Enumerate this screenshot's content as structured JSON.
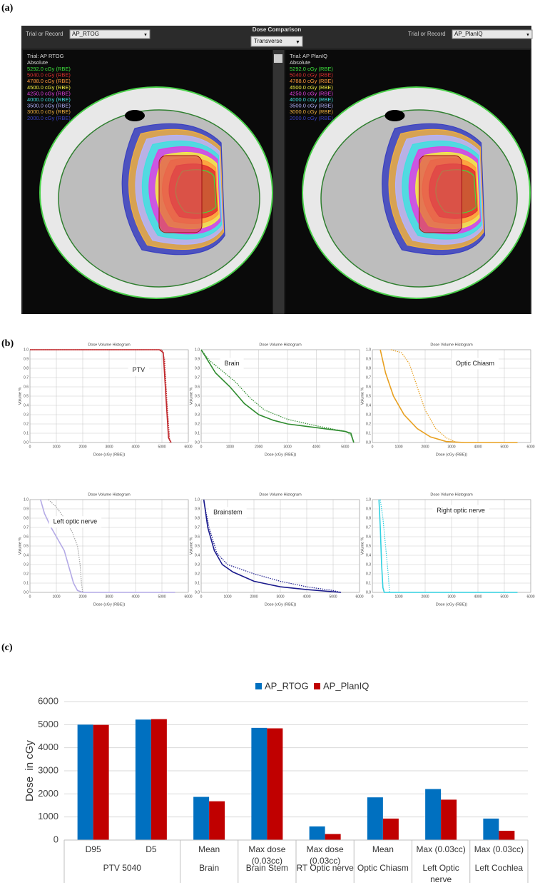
{
  "panels": [
    "(a)",
    "(b)",
    "(c)"
  ],
  "viewer": {
    "center": {
      "title": "Dose Comparison",
      "view": "Transverse"
    },
    "left": {
      "trial_label": "Trial or Record",
      "trial": "AP_RTOG",
      "legend_title": "Trial: AP RTOG",
      "mode": "Absolute",
      "isodoses": [
        {
          "label": "5292.0 cGy (RBE)",
          "color": "#3ce03c"
        },
        {
          "label": "5040.0 cGy (RBE)",
          "color": "#e03030"
        },
        {
          "label": "4788.0 cGy (RBE)",
          "color": "#ff9a3c"
        },
        {
          "label": "4500.0 cGy (RBE)",
          "color": "#f4f040"
        },
        {
          "label": "4250.0 cGy (RBE)",
          "color": "#e040e0"
        },
        {
          "label": "4000.0 cGy (RBE)",
          "color": "#40e0e0"
        },
        {
          "label": "3500.0 cGy (RBE)",
          "color": "#b4b4ff"
        },
        {
          "label": "3000.0 cGy (RBE)",
          "color": "#f0b040"
        },
        {
          "label": "2000.0 cGy (RBE)",
          "color": "#3a40c0"
        }
      ]
    },
    "right": {
      "trial_label": "Trial or Record",
      "trial": "AP_PlanIQ",
      "legend_title": "Trial: AP PlanIQ",
      "mode": "Absolute",
      "isodoses": [
        {
          "label": "5292.0 cGy (RBE)",
          "color": "#3ce03c"
        },
        {
          "label": "5040.0 cGy (RBE)",
          "color": "#e03030"
        },
        {
          "label": "4788.0 cGy (RBE)",
          "color": "#ff9a3c"
        },
        {
          "label": "4500.0 cGy (RBE)",
          "color": "#f4f040"
        },
        {
          "label": "4250.0 cGy (RBE)",
          "color": "#e040e0"
        },
        {
          "label": "4000.0 cGy (RBE)",
          "color": "#40e0e0"
        },
        {
          "label": "3500.0 cGy (RBE)",
          "color": "#b4b4ff"
        },
        {
          "label": "3000.0 cGy (RBE)",
          "color": "#f0b040"
        },
        {
          "label": "2000.0 cGy (RBE)",
          "color": "#3a40c0"
        }
      ]
    }
  },
  "chart_data": [
    {
      "type": "line",
      "title": "Dose Volume Histogram",
      "annotation": "PTV",
      "x_label": "Dose (cGy (RBE))",
      "y_label": "Volume %",
      "grid": true,
      "xlim": [
        0,
        6000
      ],
      "xticks": [
        0,
        1000,
        2000,
        3000,
        4000,
        5000,
        6000
      ],
      "ylim": [
        0,
        1
      ],
      "yticks": [
        {
          "value": 0,
          "label": "0.0"
        },
        0.1,
        0.2,
        0.3,
        0.4,
        0.5,
        0.6,
        0.7,
        0.8,
        0.9,
        {
          "value": 1,
          "label": "1.0"
        }
      ],
      "series": [
        {
          "color": "#c0282c",
          "dashed": false,
          "x": [
            0,
            4900,
            5050,
            5150,
            5250,
            5350
          ],
          "values": [
            1,
            1,
            0.97,
            0.5,
            0.05,
            0
          ]
        },
        {
          "color": "#c0282c",
          "dashed": true,
          "x": [
            0,
            5000,
            5100,
            5200,
            5300
          ],
          "values": [
            1,
            1,
            0.9,
            0.4,
            0
          ]
        }
      ]
    },
    {
      "type": "line",
      "title": "Dose Volume Histogram",
      "annotation": "Brain",
      "x_label": "Dose (cGy (RBE))",
      "y_label": "Volume %",
      "grid": true,
      "xlim": [
        0,
        5500
      ],
      "xticks": [
        0,
        1000,
        2000,
        3000,
        4000,
        5000
      ],
      "ylim": [
        0,
        1
      ],
      "yticks": [
        {
          "value": 0,
          "label": "0.0"
        },
        0.1,
        0.2,
        0.3,
        0.4,
        0.5,
        0.6,
        0.7,
        0.8,
        0.9,
        {
          "value": 1,
          "label": "1.0"
        }
      ],
      "series": [
        {
          "color": "#2e8b2e",
          "dashed": false,
          "x": [
            0,
            200,
            500,
            1000,
            1500,
            2000,
            2500,
            3000,
            4000,
            5000,
            5200,
            5300
          ],
          "values": [
            1,
            0.9,
            0.75,
            0.6,
            0.42,
            0.3,
            0.24,
            0.2,
            0.16,
            0.12,
            0.1,
            0
          ]
        },
        {
          "color": "#2e8b2e",
          "dashed": true,
          "x": [
            0,
            300,
            700,
            1200,
            1700,
            2200,
            3000,
            4000,
            5000,
            5200,
            5300
          ],
          "values": [
            1,
            0.88,
            0.78,
            0.65,
            0.48,
            0.35,
            0.25,
            0.18,
            0.12,
            0.08,
            0
          ]
        }
      ]
    },
    {
      "type": "line",
      "title": "Dose Volume Histogram",
      "annotation": "Optic Chiasm",
      "x_label": "Dose (cGy (RBE))",
      "y_label": "Volume %",
      "grid": true,
      "xlim": [
        0,
        6000
      ],
      "xticks": [
        0,
        1000,
        2000,
        3000,
        4000,
        5000,
        6000
      ],
      "ylim": [
        0,
        1
      ],
      "yticks": [
        {
          "value": 0,
          "label": "0.0"
        },
        0.1,
        0.2,
        0.3,
        0.4,
        0.5,
        0.6,
        0.7,
        0.8,
        0.9,
        {
          "value": 1,
          "label": "1.0"
        }
      ],
      "series": [
        {
          "color": "#e8a020",
          "dashed": false,
          "x": [
            300,
            500,
            800,
            1200,
            1700,
            2200,
            2800,
            3500,
            5500
          ],
          "values": [
            1,
            0.75,
            0.5,
            0.3,
            0.15,
            0.06,
            0.01,
            0,
            0
          ]
        },
        {
          "color": "#e8a020",
          "dashed": true,
          "x": [
            700,
            1100,
            1400,
            1700,
            2000,
            2400,
            2800,
            3200
          ],
          "values": [
            1,
            0.97,
            0.85,
            0.6,
            0.35,
            0.15,
            0.05,
            0
          ]
        }
      ]
    },
    {
      "type": "line",
      "title": "Dose Volume Histogram",
      "annotation": "Left optic nerve",
      "x_label": "Dose (cGy (RBE))",
      "y_label": "Volume %",
      "grid": true,
      "xlim": [
        0,
        6000
      ],
      "xticks": [
        0,
        1000,
        2000,
        3000,
        4000,
        5000,
        6000
      ],
      "ylim": [
        0,
        1
      ],
      "yticks": [
        {
          "value": 0,
          "label": "0.0"
        },
        0.1,
        0.2,
        0.3,
        0.4,
        0.5,
        0.6,
        0.7,
        0.8,
        0.9,
        {
          "value": 1,
          "label": "1.0"
        }
      ],
      "series": [
        {
          "color": "#b4aae6",
          "dashed": false,
          "x": [
            400,
            550,
            800,
            1100,
            1300,
            1500,
            1650,
            1800,
            2000,
            5500
          ],
          "values": [
            1,
            0.85,
            0.7,
            0.55,
            0.45,
            0.25,
            0.1,
            0.02,
            0,
            0
          ]
        },
        {
          "color": "#a0a0a0",
          "dashed": true,
          "x": [
            700,
            1000,
            1300,
            1600,
            1800,
            1900,
            1950,
            2000
          ],
          "values": [
            1,
            0.92,
            0.8,
            0.65,
            0.5,
            0.3,
            0.1,
            0
          ]
        }
      ]
    },
    {
      "type": "line",
      "title": "Dose Volume Histogram",
      "annotation": "Brainstem",
      "x_label": "Dose (cGy (RBE))",
      "y_label": "Volume %",
      "grid": true,
      "xlim": [
        0,
        6000
      ],
      "xticks": [
        0,
        1000,
        2000,
        3000,
        4000,
        5000,
        6000
      ],
      "ylim": [
        0,
        1
      ],
      "yticks": [
        {
          "value": 0,
          "label": "0.0"
        },
        0.1,
        0.2,
        0.3,
        0.4,
        0.5,
        0.6,
        0.7,
        0.8,
        0.9,
        {
          "value": 1,
          "label": "1.0"
        }
      ],
      "series": [
        {
          "color": "#1a1a8c",
          "dashed": false,
          "x": [
            100,
            250,
            500,
            800,
            1200,
            1600,
            2000,
            3000,
            4000,
            5300
          ],
          "values": [
            1,
            0.7,
            0.45,
            0.3,
            0.22,
            0.17,
            0.12,
            0.06,
            0.03,
            0
          ]
        },
        {
          "color": "#1a1a8c",
          "dashed": true,
          "x": [
            100,
            300,
            600,
            1000,
            1500,
            2000,
            3000,
            4000,
            5000,
            5300
          ],
          "values": [
            0.98,
            0.7,
            0.42,
            0.3,
            0.25,
            0.2,
            0.12,
            0.06,
            0.02,
            0
          ]
        }
      ]
    },
    {
      "type": "line",
      "title": "Dose Volume Histogram",
      "annotation": "Right optic nerve",
      "x_label": "Dose (cGy (RBE))",
      "y_label": "Volume %",
      "grid": true,
      "xlim": [
        0,
        6000
      ],
      "xticks": [
        0,
        1000,
        2000,
        3000,
        4000,
        5000,
        6000
      ],
      "ylim": [
        0,
        1
      ],
      "yticks": [
        {
          "value": 0,
          "label": "0.0"
        },
        0.1,
        0.2,
        0.3,
        0.4,
        0.5,
        0.6,
        0.7,
        0.8,
        0.9,
        {
          "value": 1,
          "label": "1.0"
        }
      ],
      "series": [
        {
          "color": "#30d0e0",
          "dashed": false,
          "x": [
            250,
            300,
            350,
            400,
            450,
            5500
          ],
          "values": [
            1,
            0.7,
            0.3,
            0.05,
            0,
            0
          ]
        },
        {
          "color": "#30d0e0",
          "dashed": true,
          "x": [
            300,
            400,
            500,
            600,
            650
          ],
          "values": [
            1,
            0.8,
            0.5,
            0.2,
            0
          ]
        }
      ]
    },
    {
      "type": "bar",
      "y_label": "Dose  in cGy",
      "legend": "top",
      "grid": true,
      "ylim": [
        0,
        6000
      ],
      "yticks": [
        0,
        1000,
        2000,
        3000,
        4000,
        5000,
        6000
      ],
      "categories": [
        {
          "label": "D95",
          "group": "PTV 5040"
        },
        {
          "label": "D5",
          "group": null
        },
        {
          "label": "Mean",
          "group": "Brain"
        },
        {
          "label": "Max dose (0.03cc)",
          "group": "Brain Stem"
        },
        {
          "label": "Max dose (0.03cc)",
          "group": "RT Optic nerve"
        },
        {
          "label": "Mean",
          "group": "Optic Chiasm"
        },
        {
          "label": "Max (0.03cc)",
          "group": "Left Optic nerve"
        },
        {
          "label": "Max (0.03cc)",
          "group": "Left Cochlea"
        }
      ],
      "series": [
        {
          "name": "AP_RTOG",
          "color": "#0070c0",
          "values": [
            5000,
            5220,
            1870,
            4860,
            590,
            1850,
            2210,
            930
          ]
        },
        {
          "name": "AP_PlanIQ",
          "color": "#c00000",
          "values": [
            4990,
            5240,
            1680,
            4840,
            260,
            930,
            1750,
            400
          ]
        }
      ]
    }
  ]
}
